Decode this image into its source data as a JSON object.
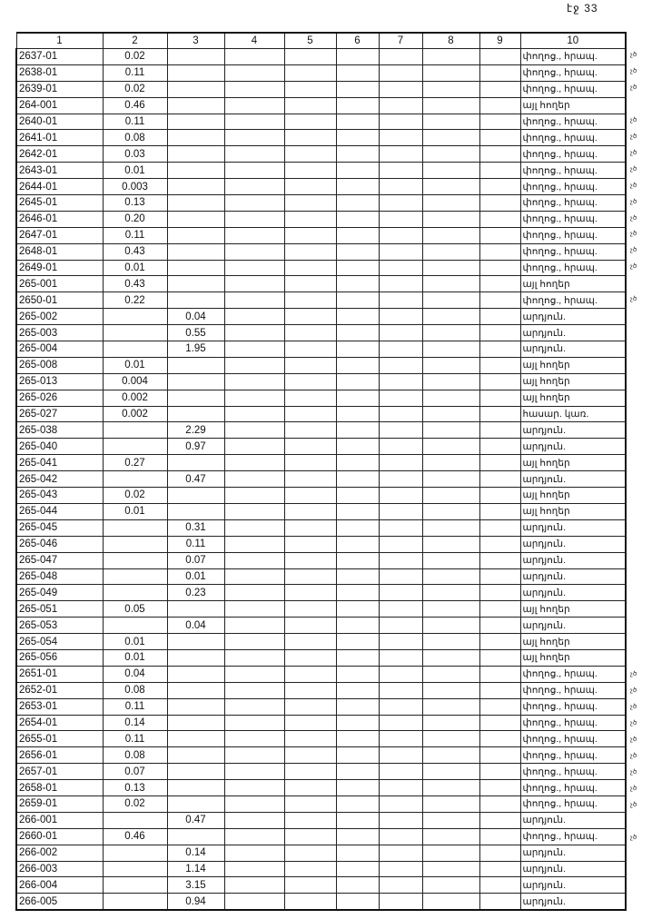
{
  "page_label": "էջ 33",
  "columns": [
    "1",
    "2",
    "3",
    "4",
    "5",
    "6",
    "7",
    "8",
    "9",
    "10"
  ],
  "rows": [
    [
      "2637-01",
      "0.02",
      "",
      "փողոց., հրապ.",
      "չծ"
    ],
    [
      "2638-01",
      "0.11",
      "",
      "փողոց., հրապ.",
      "չծ"
    ],
    [
      "2639-01",
      "0.02",
      "",
      "փողոց., հրապ.",
      "չծ"
    ],
    [
      "264-001",
      "0.46",
      "",
      "այլ հողեր",
      ""
    ],
    [
      "2640-01",
      "0.11",
      "",
      "փողոց., հրապ.",
      "չծ"
    ],
    [
      "2641-01",
      "0.08",
      "",
      "փողոց., հրապ.",
      "չծ"
    ],
    [
      "2642-01",
      "0.03",
      "",
      "փողոց., հրապ.",
      "չծ"
    ],
    [
      "2643-01",
      "0.01",
      "",
      "փողոց., հրապ.",
      "չծ"
    ],
    [
      "2644-01",
      "0.003",
      "",
      "փողոց., հրապ.",
      "չծ"
    ],
    [
      "2645-01",
      "0.13",
      "",
      "փողոց., հրապ.",
      "չծ"
    ],
    [
      "2646-01",
      "0.20",
      "",
      "փողոց., հրապ.",
      "չծ"
    ],
    [
      "2647-01",
      "0.11",
      "",
      "փողոց., հրապ.",
      "չծ"
    ],
    [
      "2648-01",
      "0.43",
      "",
      "փողոց., հրապ.",
      "չծ"
    ],
    [
      "2649-01",
      "0.01",
      "",
      "փողոց., հրապ.",
      "չծ"
    ],
    [
      "265-001",
      "0.43",
      "",
      "այլ հողեր",
      ""
    ],
    [
      "2650-01",
      "0.22",
      "",
      "փողոց., հրապ.",
      "չծ"
    ],
    [
      "265-002",
      "",
      "0.04",
      "արդյուն.",
      ""
    ],
    [
      "265-003",
      "",
      "0.55",
      "արդյուն.",
      ""
    ],
    [
      "265-004",
      "",
      "1.95",
      "արդյուն.",
      ""
    ],
    [
      "265-008",
      "0.01",
      "",
      "այլ հողեր",
      ""
    ],
    [
      "265-013",
      "0.004",
      "",
      "այլ հողեր",
      ""
    ],
    [
      "265-026",
      "0.002",
      "",
      "այլ հողեր",
      ""
    ],
    [
      "265-027",
      "0.002",
      "",
      "հասար. կառ.",
      ""
    ],
    [
      "265-038",
      "",
      "2.29",
      "արդյուն.",
      ""
    ],
    [
      "265-040",
      "",
      "0.97",
      "արդյուն.",
      ""
    ],
    [
      "265-041",
      "0.27",
      "",
      "այլ հողեր",
      ""
    ],
    [
      "265-042",
      "",
      "0.47",
      "արդյուն.",
      ""
    ],
    [
      "265-043",
      "0.02",
      "",
      "այլ հողեր",
      ""
    ],
    [
      "265-044",
      "0.01",
      "",
      "այլ հողեր",
      ""
    ],
    [
      "265-045",
      "",
      "0.31",
      "արդյուն.",
      ""
    ],
    [
      "265-046",
      "",
      "0.11",
      "արդյուն.",
      ""
    ],
    [
      "265-047",
      "",
      "0.07",
      "արդյուն.",
      ""
    ],
    [
      "265-048",
      "",
      "0.01",
      "արդյուն.",
      ""
    ],
    [
      "265-049",
      "",
      "0.23",
      "արդյուն.",
      ""
    ],
    [
      "265-051",
      "0.05",
      "",
      "այլ հողեր",
      ""
    ],
    [
      "265-053",
      "",
      "0.04",
      "արդյուն.",
      ""
    ],
    [
      "265-054",
      "0.01",
      "",
      "այլ հողեր",
      ""
    ],
    [
      "265-056",
      "0.01",
      "",
      "այլ հողեր",
      ""
    ],
    [
      "2651-01",
      "0.04",
      "",
      "փողոց., հրապ.",
      "չծ"
    ],
    [
      "2652-01",
      "0.08",
      "",
      "փողոց., հրապ.",
      "չծ"
    ],
    [
      "2653-01",
      "0.11",
      "",
      "փողոց., հրապ.",
      "չծ"
    ],
    [
      "2654-01",
      "0.14",
      "",
      "փողոց., հրապ.",
      "չծ"
    ],
    [
      "2655-01",
      "0.11",
      "",
      "փողոց., հրապ.",
      "չծ"
    ],
    [
      "2656-01",
      "0.08",
      "",
      "փողոց., հրապ.",
      "չծ"
    ],
    [
      "2657-01",
      "0.07",
      "",
      "փողոց., հրապ.",
      "չծ"
    ],
    [
      "2658-01",
      "0.13",
      "",
      "փողոց., հրապ.",
      "չծ"
    ],
    [
      "2659-01",
      "0.02",
      "",
      "փողոց., հրապ.",
      "չծ"
    ],
    [
      "266-001",
      "",
      "0.47",
      "արդյուն.",
      ""
    ],
    [
      "2660-01",
      "0.46",
      "",
      "փողոց., հրապ.",
      "չծ"
    ],
    [
      "266-002",
      "",
      "0.14",
      "արդյուն.",
      ""
    ],
    [
      "266-003",
      "",
      "1.14",
      "արդյուն.",
      ""
    ],
    [
      "266-004",
      "",
      "3.15",
      "արդյուն.",
      ""
    ],
    [
      "266-005",
      "",
      "0.94",
      "արդյուն.",
      ""
    ]
  ]
}
